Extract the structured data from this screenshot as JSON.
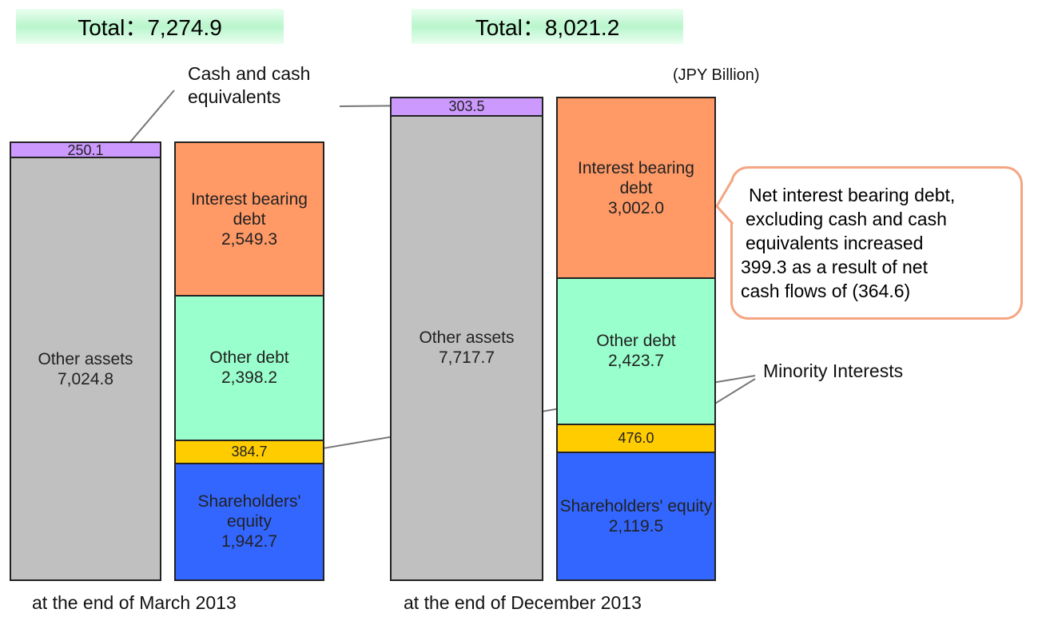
{
  "chart_data": {
    "type": "stacked_bar",
    "unit": "(JPY Billion)",
    "groups": [
      {
        "label": "at the end of March 2013",
        "total": "Total：7,274.9",
        "bars": [
          {
            "segments": [
              {
                "name": "Other assets",
                "value": 7024.8,
                "value_label": "7,024.8",
                "color": "#c0c0c0"
              },
              {
                "value": 250.1,
                "value_label": "250.1",
                "color": "#cc99ff"
              }
            ]
          },
          {
            "segments": [
              {
                "name": "Shareholders' equity",
                "value": 1942.7,
                "value_label": "1,942.7",
                "color": "#3366ff"
              },
              {
                "value": 384.7,
                "value_label": "384.7",
                "color": "#ffcc00"
              },
              {
                "name": "Other debt",
                "value": 2398.2,
                "value_label": "2,398.2",
                "color": "#99ffcc"
              },
              {
                "name": "Interest bearing debt",
                "value": 2549.3,
                "value_label": "2,549.3",
                "color": "#ff9966"
              }
            ]
          }
        ]
      },
      {
        "label": "at the end of December 2013",
        "total": "Total：8,021.2",
        "bars": [
          {
            "segments": [
              {
                "name": "Other assets",
                "value": 7717.7,
                "value_label": "7,717.7",
                "color": "#c0c0c0"
              },
              {
                "value": 303.5,
                "value_label": "303.5",
                "color": "#cc99ff"
              }
            ]
          },
          {
            "segments": [
              {
                "name": "Shareholders' equity",
                "value": 2119.5,
                "value_label": "2,119.5",
                "color": "#3366ff"
              },
              {
                "value": 476.0,
                "value_label": "476.0",
                "color": "#ffcc00"
              },
              {
                "name": "Other debt",
                "value": 2423.7,
                "value_label": "2,423.7",
                "color": "#99ffcc"
              },
              {
                "name": "Interest bearing debt",
                "value": 3002.0,
                "value_label": "3,002.0",
                "color": "#ff9966"
              }
            ]
          }
        ]
      }
    ],
    "annotations": {
      "cash": [
        "Cash and cash",
        "equivalents"
      ],
      "minority": "Minority Interests",
      "note": [
        "Net interest bearing debt,",
        "excluding cash and cash",
        "equivalents increased",
        "399.3 as a result of net",
        "cash flows of (364.6)"
      ]
    }
  }
}
